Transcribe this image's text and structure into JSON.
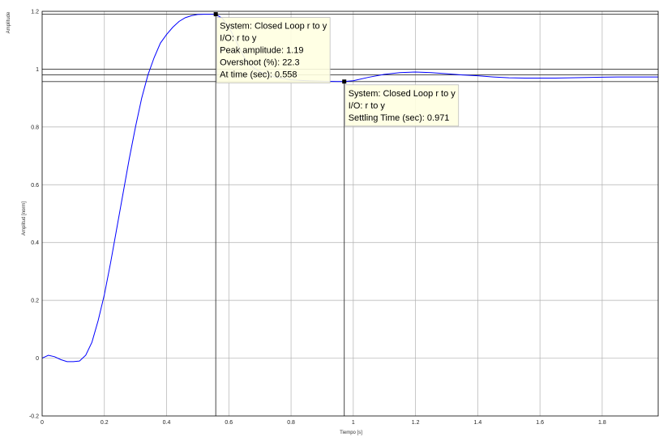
{
  "figure": {
    "outer_ylabel": "Amplitude",
    "colors": {
      "series": "#0000ff",
      "grid": "#b0b0b0",
      "frame": "#000000",
      "tooltip_bg": "#ffffe1",
      "marker": "#000000"
    }
  },
  "chart_data": {
    "type": "line",
    "title": "",
    "xlabel": "Tiempo [s]",
    "ylabel": "Amplitud [norm]",
    "xlim": [
      0,
      1.98
    ],
    "ylim": [
      -0.2,
      1.2
    ],
    "grid": true,
    "x_ticks": [
      "0",
      "0.2",
      "0.4",
      "0.6",
      "0.8",
      "1",
      "1.2",
      "1.4",
      "1.6",
      "1.8"
    ],
    "y_ticks": [
      "-0.2",
      "0",
      "0.2",
      "0.4",
      "0.6",
      "0.8",
      "1",
      "1.2"
    ],
    "series": [
      {
        "name": "Closed Loop r to y",
        "x": [
          0,
          0.02,
          0.04,
          0.06,
          0.08,
          0.1,
          0.12,
          0.14,
          0.16,
          0.18,
          0.2,
          0.22,
          0.24,
          0.26,
          0.28,
          0.3,
          0.32,
          0.34,
          0.36,
          0.38,
          0.4,
          0.42,
          0.44,
          0.46,
          0.48,
          0.5,
          0.52,
          0.54,
          0.558,
          0.58,
          0.6,
          0.62,
          0.64,
          0.66,
          0.7,
          0.75,
          0.8,
          0.85,
          0.9,
          0.95,
          0.971,
          1.0,
          1.05,
          1.1,
          1.15,
          1.2,
          1.25,
          1.3,
          1.35,
          1.4,
          1.45,
          1.5,
          1.55,
          1.6,
          1.65,
          1.7,
          1.75,
          1.8,
          1.85,
          1.9,
          1.95,
          1.98
        ],
        "y": [
          0,
          0.01,
          0.005,
          -0.005,
          -0.012,
          -0.012,
          -0.01,
          0.01,
          0.055,
          0.13,
          0.22,
          0.33,
          0.45,
          0.57,
          0.69,
          0.8,
          0.9,
          0.98,
          1.04,
          1.09,
          1.12,
          1.145,
          1.165,
          1.178,
          1.185,
          1.189,
          1.19,
          1.19,
          1.19,
          1.175,
          1.145,
          1.105,
          1.06,
          1.02,
          0.99,
          0.972,
          0.963,
          0.96,
          0.958,
          0.957,
          0.957,
          0.96,
          0.972,
          0.982,
          0.988,
          0.99,
          0.988,
          0.984,
          0.98,
          0.977,
          0.973,
          0.97,
          0.969,
          0.969,
          0.969,
          0.97,
          0.971,
          0.972,
          0.973,
          0.973,
          0.973,
          0.973
        ]
      }
    ],
    "annotations": [
      {
        "x": 0.558,
        "y": 1.19,
        "lines": [
          "System: Closed Loop r to y",
          "I/O: r to y",
          "Peak amplitude: 1.19",
          "Overshoot (%): 22.3",
          "At time (sec): 0.558"
        ]
      },
      {
        "x": 0.971,
        "y": 0.957,
        "lines": [
          "System: Closed Loop r to y",
          "I/O: r to y",
          "Settling Time (sec): 0.971"
        ]
      }
    ],
    "reference_lines_y": [
      1.19,
      1.0,
      0.98,
      0.957
    ]
  }
}
